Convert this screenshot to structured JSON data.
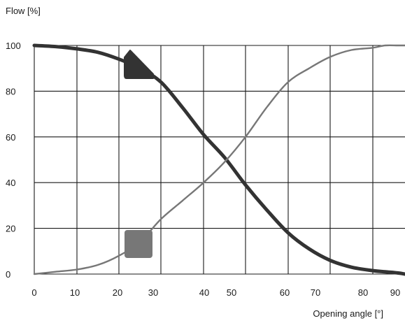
{
  "chart_data": {
    "type": "line",
    "ylabel": "Flow [%]",
    "xlabel": "Opening angle [°]",
    "ylim": [
      0,
      100
    ],
    "grid": true,
    "y_ticks": [
      0,
      20,
      40,
      60,
      80,
      100
    ],
    "x_ticks": [
      "0",
      "10",
      "20",
      "30",
      "40",
      "50",
      "60",
      "70",
      "80",
      "90"
    ],
    "x_tick_values": [
      0,
      10,
      20,
      30,
      40,
      50,
      60,
      70,
      80,
      90
    ],
    "series": [
      {
        "color": "#333333",
        "marker": "triangle",
        "points": [
          [
            0,
            100
          ],
          [
            5,
            99.5
          ],
          [
            10,
            98.5
          ],
          [
            15,
            97
          ],
          [
            20,
            94
          ],
          [
            25,
            90
          ],
          [
            30,
            84
          ],
          [
            35,
            73
          ],
          [
            40,
            61
          ],
          [
            45,
            51
          ],
          [
            50,
            39
          ],
          [
            55,
            28
          ],
          [
            60,
            18
          ],
          [
            65,
            11
          ],
          [
            70,
            6
          ],
          [
            75,
            3
          ],
          [
            80,
            1.5
          ],
          [
            85,
            1
          ],
          [
            90,
            0.5
          ],
          [
            93,
            0
          ]
        ]
      },
      {
        "color": "#777777",
        "marker": "square",
        "points": [
          [
            0,
            0
          ],
          [
            5,
            1
          ],
          [
            10,
            2
          ],
          [
            15,
            4
          ],
          [
            20,
            8
          ],
          [
            25,
            14
          ],
          [
            30,
            24
          ],
          [
            35,
            32
          ],
          [
            40,
            40
          ],
          [
            45,
            49
          ],
          [
            50,
            60
          ],
          [
            55,
            73
          ],
          [
            60,
            84
          ],
          [
            65,
            90
          ],
          [
            70,
            95
          ],
          [
            75,
            98
          ],
          [
            80,
            99
          ],
          [
            85,
            100
          ],
          [
            90,
            100
          ],
          [
            93,
            100
          ]
        ]
      }
    ]
  }
}
